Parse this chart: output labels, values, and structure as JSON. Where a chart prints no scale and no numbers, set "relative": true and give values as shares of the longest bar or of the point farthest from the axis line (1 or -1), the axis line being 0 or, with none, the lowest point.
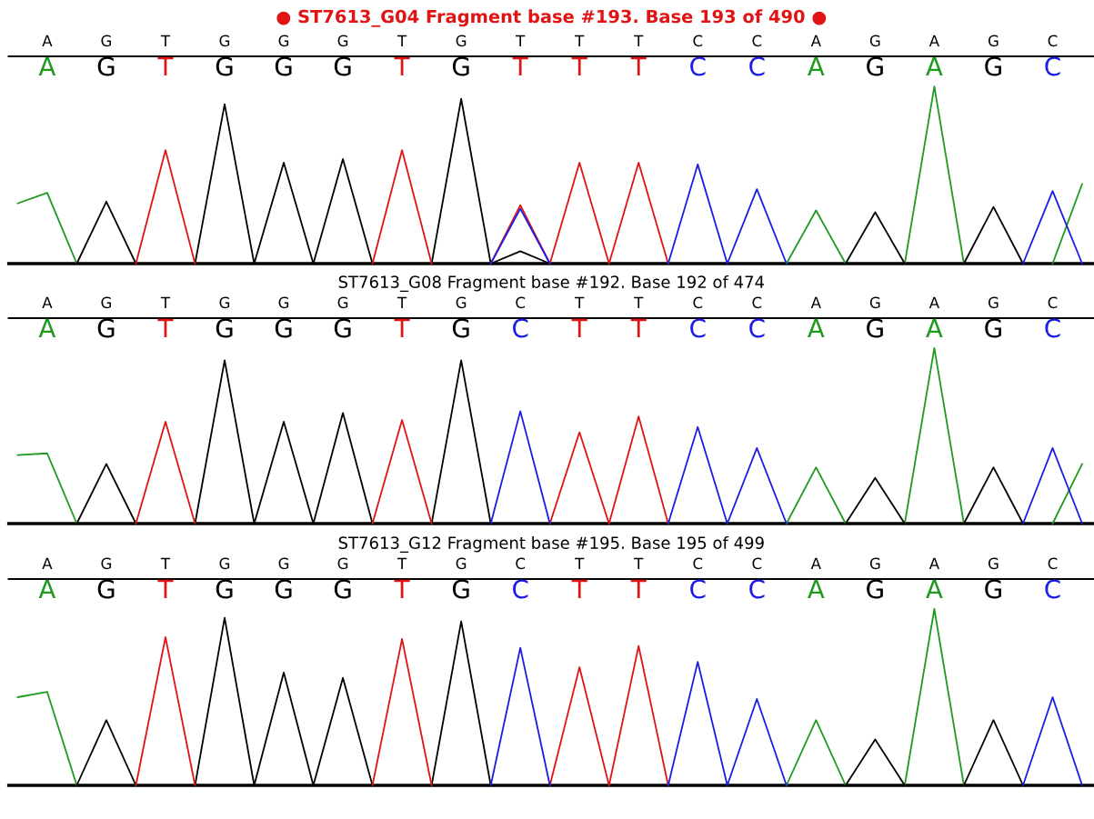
{
  "chart_data": [
    {
      "type": "line",
      "title": "● ST7613_G04 Fragment base #193. Base 193 of 490 ●",
      "relative": true,
      "categories": [
        null,
        "A",
        null,
        "G",
        null,
        "T",
        null,
        "G",
        null,
        "G",
        null,
        "G",
        null,
        "T",
        null,
        "G",
        null,
        "T",
        null,
        "T",
        null,
        "T",
        null,
        "C",
        null,
        "C",
        null,
        "A",
        null,
        "G",
        null,
        "A",
        null,
        "G",
        null,
        "C",
        null
      ],
      "series": [
        {
          "color": "#1f9a1f",
          "values": [
            0.34,
            0.4,
            0,
            null,
            null,
            null,
            null,
            null,
            null,
            null,
            null,
            null,
            null,
            null,
            null,
            null,
            null,
            null,
            null,
            null,
            null,
            null,
            null,
            null,
            null,
            null,
            0,
            0.3,
            0,
            null,
            0,
            1.0,
            0,
            null,
            null,
            0,
            0.45
          ]
        },
        {
          "color": "#000000",
          "values": [
            null,
            null,
            0,
            0.35,
            0,
            null,
            0,
            0.9,
            0,
            0.57,
            0,
            0.59,
            0,
            null,
            0,
            0.93,
            0,
            0.07,
            0,
            null,
            null,
            null,
            null,
            null,
            null,
            null,
            null,
            null,
            0,
            0.29,
            0,
            null,
            0,
            0.32,
            0,
            null,
            null
          ]
        },
        {
          "color": "#e01414",
          "values": [
            null,
            null,
            null,
            null,
            0,
            0.64,
            0,
            null,
            null,
            null,
            null,
            null,
            0,
            0.64,
            0,
            null,
            0,
            0.33,
            0,
            0.57,
            0,
            0.57,
            0,
            null,
            null,
            null,
            null,
            null,
            null,
            null,
            null,
            null,
            null,
            null,
            null,
            null,
            null
          ]
        },
        {
          "color": "#1c1ce6",
          "values": [
            null,
            null,
            null,
            null,
            null,
            null,
            null,
            null,
            null,
            null,
            null,
            null,
            null,
            null,
            null,
            null,
            0,
            0.31,
            0,
            null,
            null,
            null,
            0,
            0.56,
            0,
            0.42,
            0,
            null,
            null,
            null,
            null,
            null,
            null,
            null,
            0,
            0.41,
            0
          ]
        }
      ]
    },
    {
      "type": "line",
      "title": "ST7613_G08 Fragment base #192. Base 192 of 474",
      "relative": true,
      "categories": [
        null,
        "A",
        null,
        "G",
        null,
        "T",
        null,
        "G",
        null,
        "G",
        null,
        "G",
        null,
        "T",
        null,
        "G",
        null,
        "C",
        null,
        "T",
        null,
        "T",
        null,
        "C",
        null,
        "C",
        null,
        "A",
        null,
        "G",
        null,
        "A",
        null,
        "G",
        null,
        "C",
        null
      ],
      "series": [
        {
          "color": "#1f9a1f",
          "values": [
            0.39,
            0.4,
            0,
            null,
            null,
            null,
            null,
            null,
            null,
            null,
            null,
            null,
            null,
            null,
            null,
            null,
            null,
            null,
            null,
            null,
            null,
            null,
            null,
            null,
            null,
            null,
            0,
            0.32,
            0,
            null,
            0,
            1.0,
            0,
            null,
            null,
            0,
            0.34
          ]
        },
        {
          "color": "#000000",
          "values": [
            null,
            null,
            0,
            0.34,
            0,
            null,
            0,
            0.93,
            0,
            0.58,
            0,
            0.63,
            0,
            null,
            0,
            0.93,
            0,
            null,
            null,
            null,
            null,
            null,
            null,
            null,
            null,
            null,
            null,
            null,
            0,
            0.26,
            0,
            null,
            0,
            0.32,
            0,
            null,
            null
          ]
        },
        {
          "color": "#e01414",
          "values": [
            null,
            null,
            null,
            null,
            0,
            0.58,
            0,
            null,
            null,
            null,
            null,
            null,
            0,
            0.59,
            0,
            null,
            null,
            null,
            0,
            0.52,
            0,
            0.61,
            0,
            null,
            null,
            null,
            null,
            null,
            null,
            null,
            null,
            null,
            null,
            null,
            null,
            null,
            null
          ]
        },
        {
          "color": "#1c1ce6",
          "values": [
            null,
            null,
            null,
            null,
            null,
            null,
            null,
            null,
            null,
            null,
            null,
            null,
            null,
            null,
            null,
            null,
            0,
            0.64,
            0,
            null,
            null,
            null,
            0,
            0.55,
            0,
            0.43,
            0,
            null,
            null,
            null,
            null,
            null,
            null,
            null,
            0,
            0.43,
            0
          ]
        }
      ]
    },
    {
      "type": "line",
      "title": "ST7613_G12 Fragment base #195. Base 195 of 499",
      "relative": true,
      "categories": [
        null,
        "A",
        null,
        "G",
        null,
        "T",
        null,
        "G",
        null,
        "G",
        null,
        "G",
        null,
        "T",
        null,
        "G",
        null,
        "C",
        null,
        "T",
        null,
        "T",
        null,
        "C",
        null,
        "C",
        null,
        "A",
        null,
        "G",
        null,
        "A",
        null,
        "G",
        null,
        "C",
        null
      ],
      "series": [
        {
          "color": "#1f9a1f",
          "values": [
            0.5,
            0.53,
            0,
            null,
            null,
            null,
            null,
            null,
            null,
            null,
            null,
            null,
            null,
            null,
            null,
            null,
            null,
            null,
            null,
            null,
            null,
            null,
            null,
            null,
            null,
            null,
            0,
            0.37,
            0,
            null,
            0,
            1.0,
            0,
            null,
            null,
            null,
            null
          ]
        },
        {
          "color": "#000000",
          "values": [
            null,
            null,
            0,
            0.37,
            0,
            null,
            0,
            0.95,
            0,
            0.64,
            0,
            0.61,
            0,
            null,
            0,
            0.93,
            0,
            null,
            null,
            null,
            null,
            null,
            null,
            null,
            null,
            null,
            null,
            null,
            0,
            0.26,
            0,
            null,
            0,
            0.37,
            0,
            null,
            null
          ]
        },
        {
          "color": "#e01414",
          "values": [
            null,
            null,
            null,
            null,
            0,
            0.84,
            0,
            null,
            null,
            null,
            null,
            null,
            0,
            0.83,
            0,
            null,
            null,
            null,
            0,
            0.67,
            0,
            0.79,
            0,
            null,
            null,
            null,
            null,
            null,
            null,
            null,
            null,
            null,
            null,
            null,
            null,
            null,
            null
          ]
        },
        {
          "color": "#1c1ce6",
          "values": [
            null,
            null,
            null,
            null,
            null,
            null,
            null,
            null,
            null,
            null,
            null,
            null,
            null,
            null,
            null,
            null,
            0,
            0.78,
            0,
            null,
            null,
            null,
            0,
            0.7,
            0,
            0.49,
            0,
            null,
            null,
            null,
            null,
            null,
            null,
            null,
            0,
            0.5,
            0
          ]
        }
      ]
    }
  ]
}
